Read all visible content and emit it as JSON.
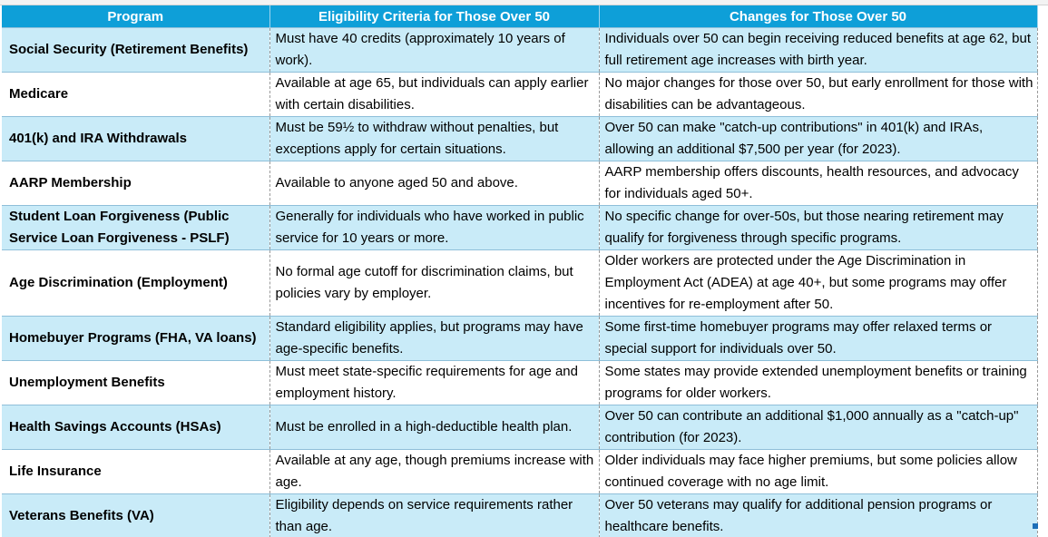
{
  "table": {
    "headers": [
      "Program",
      "Eligibility Criteria for Those Over 50",
      "Changes for Those Over 50"
    ],
    "rows": [
      {
        "program": "Social Security (Retirement Benefits)",
        "eligibility": "Must have 40 credits (approximately 10 years of work).",
        "changes": "Individuals over 50 can begin receiving reduced benefits at age 62, but full retirement age increases with birth year."
      },
      {
        "program": "Medicare",
        "eligibility": "Available at age 65, but individuals can apply earlier with certain disabilities.",
        "changes": "No major changes for those over 50, but early enrollment for those with disabilities can be advantageous."
      },
      {
        "program": "401(k) and IRA Withdrawals",
        "eligibility": "Must be 59½ to withdraw without penalties, but exceptions apply for certain situations.",
        "changes": "Over 50 can make \"catch-up contributions\" in 401(k) and IRAs, allowing an additional $7,500 per year (for 2023)."
      },
      {
        "program": "AARP Membership",
        "eligibility": "Available to anyone aged 50 and above.",
        "changes": "AARP membership offers discounts, health resources, and advocacy for individuals aged 50+."
      },
      {
        "program": "Student Loan Forgiveness (Public Service Loan Forgiveness - PSLF)",
        "eligibility": "Generally for individuals who have worked in public service for 10 years or more.",
        "changes": "No specific change for over-50s, but those nearing retirement may qualify for forgiveness through specific programs."
      },
      {
        "program": "Age Discrimination (Employment)",
        "eligibility": "No formal age cutoff for discrimination claims, but policies vary by employer.",
        "changes": "Older workers are protected under the Age Discrimination in Employment Act (ADEA) at age 40+, but some programs may offer incentives for re-employment after 50."
      },
      {
        "program": "Homebuyer Programs (FHA, VA loans)",
        "eligibility": "Standard eligibility applies, but programs may have age-specific benefits.",
        "changes": "Some first-time homebuyer programs may offer relaxed terms or special support for individuals over 50."
      },
      {
        "program": "Unemployment Benefits",
        "eligibility": "Must meet state-specific requirements for age and employment history.",
        "changes": "Some states may provide extended unemployment benefits or training programs for older workers."
      },
      {
        "program": "Health Savings Accounts (HSAs)",
        "eligibility": "Must be enrolled in a high-deductible health plan.",
        "changes": "Over 50 can contribute an additional $1,000 annually as a \"catch-up\" contribution (for 2023)."
      },
      {
        "program": "Life Insurance",
        "eligibility": "Available at any age, though premiums increase with age.",
        "changes": "Older individuals may face higher premiums, but some policies allow continued coverage with no age limit."
      },
      {
        "program": "Veterans Benefits (VA)",
        "eligibility": "Eligibility depends on service requirements rather than age.",
        "changes": "Over 50 veterans may qualify for additional pension programs or healthcare benefits."
      }
    ]
  },
  "colors": {
    "header_bg": "#0e9fd8",
    "band_bg": "#c9ebf8",
    "header_text": "#ffffff"
  }
}
